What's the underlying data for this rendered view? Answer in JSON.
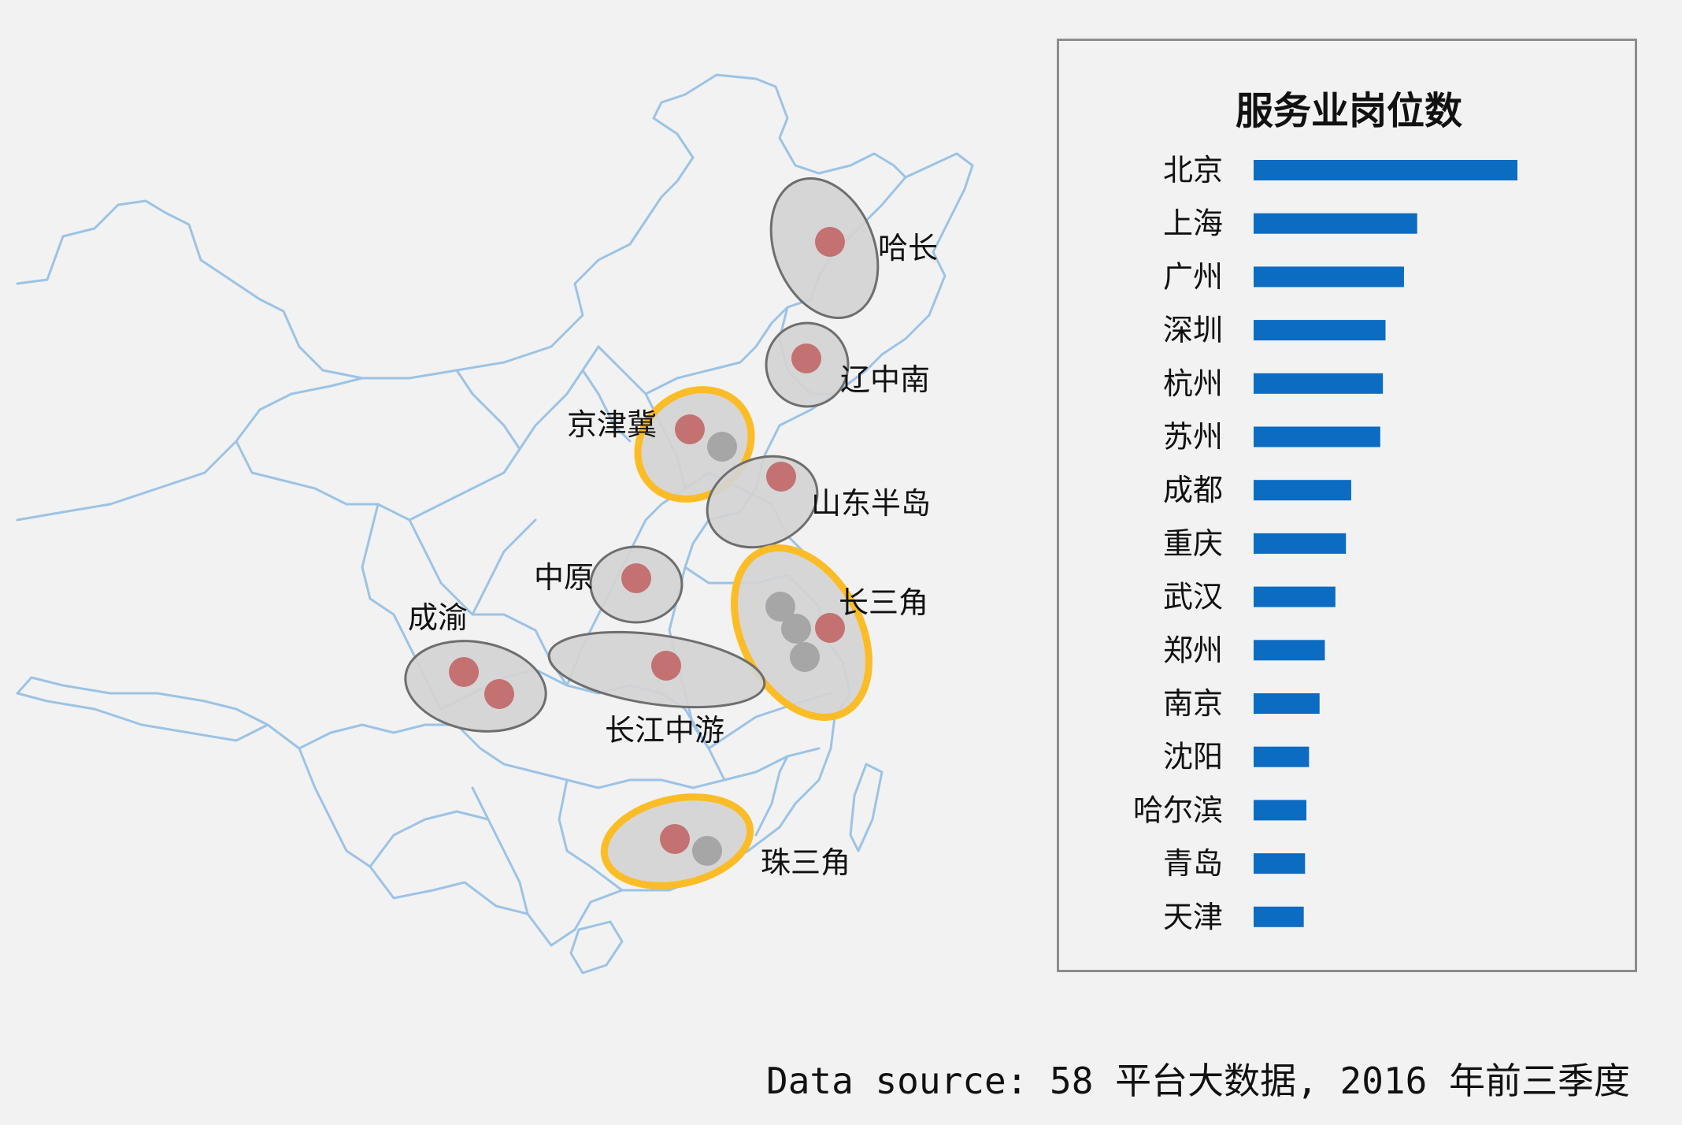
{
  "map": {
    "colors": {
      "border": "#9cc3e6",
      "cluster_fill": "#d4d4d4",
      "cluster_stroke": "#6e6e6e",
      "highlight_stroke": "#fbbc26",
      "dot_red": "#c47171",
      "dot_gray": "#a6a6a6"
    },
    "clusters": [
      {
        "label": "哈长",
        "highlight": false,
        "dots": [
          "red"
        ]
      },
      {
        "label": "辽中南",
        "highlight": false,
        "dots": [
          "red"
        ]
      },
      {
        "label": "京津冀",
        "highlight": true,
        "dots": [
          "red",
          "gray"
        ]
      },
      {
        "label": "山东半岛",
        "highlight": false,
        "dots": [
          "red"
        ]
      },
      {
        "label": "中原",
        "highlight": false,
        "dots": [
          "red"
        ]
      },
      {
        "label": "长三角",
        "highlight": true,
        "dots": [
          "gray",
          "gray",
          "gray",
          "red"
        ]
      },
      {
        "label": "成渝",
        "highlight": false,
        "dots": [
          "red",
          "red"
        ]
      },
      {
        "label": "长江中游",
        "highlight": false,
        "dots": [
          "red"
        ]
      },
      {
        "label": "珠三角",
        "highlight": true,
        "dots": [
          "red",
          "gray"
        ]
      }
    ]
  },
  "chart_data": {
    "type": "bar",
    "orientation": "horizontal",
    "title": "服务业岗位数",
    "categories": [
      "北京",
      "上海",
      "广州",
      "深圳",
      "杭州",
      "苏州",
      "成都",
      "重庆",
      "武汉",
      "郑州",
      "南京",
      "沈阳",
      "哈尔滨",
      "青岛",
      "天津"
    ],
    "values": [
      100,
      62,
      57,
      50,
      49,
      48,
      37,
      35,
      31,
      27,
      25,
      21,
      20,
      19.5,
      19
    ],
    "xlim": [
      0,
      100
    ],
    "bar_color": "#0b6cc2",
    "grid": false,
    "axes_visible": false
  },
  "source_note": "Data source: 58 平台大数据, 2016 年前三季度"
}
